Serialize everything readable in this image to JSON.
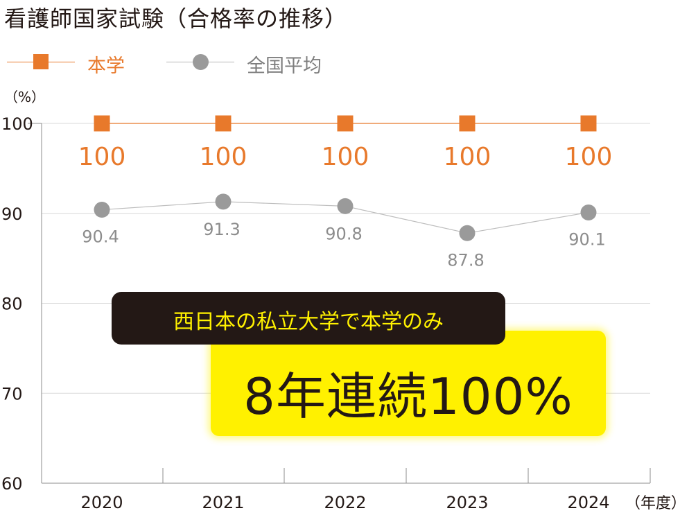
{
  "title": "看護師国家試験（合格率の推移）",
  "unit_label": "（%）",
  "x_unit_label": "（年度）",
  "colors": {
    "school": "#e8792b",
    "national": "#9a9a9a",
    "grid": "#d9d9d9",
    "axis": "#8c8c8c",
    "highlight": "#fff100",
    "dark": "#231815"
  },
  "legend": [
    {
      "label": "本学",
      "marker": "square",
      "color": "#e8792b"
    },
    {
      "label": "全国平均",
      "marker": "circle",
      "color": "#9a9a9a"
    }
  ],
  "callout": {
    "sub": "西日本の私立大学で本学のみ",
    "main": "8年連続100%"
  },
  "chart_data": {
    "type": "line",
    "title": "看護師国家試験（合格率の推移）",
    "xlabel": "（年度）",
    "ylabel": "（%）",
    "categories": [
      "2020",
      "2021",
      "2022",
      "2023",
      "2024"
    ],
    "ylim": [
      60,
      100
    ],
    "yticks": [
      60,
      70,
      80,
      90,
      100
    ],
    "grid": true,
    "legend_position": "top-left",
    "series": [
      {
        "name": "本学",
        "values": [
          100,
          100,
          100,
          100,
          100
        ],
        "labels": [
          "100",
          "100",
          "100",
          "100",
          "100"
        ],
        "color": "#e8792b",
        "marker": "square"
      },
      {
        "name": "全国平均",
        "values": [
          90.4,
          91.3,
          90.8,
          87.8,
          90.1
        ],
        "labels": [
          "90.4",
          "91.3",
          "90.8",
          "87.8",
          "90.1"
        ],
        "color": "#9a9a9a",
        "marker": "circle"
      }
    ]
  }
}
